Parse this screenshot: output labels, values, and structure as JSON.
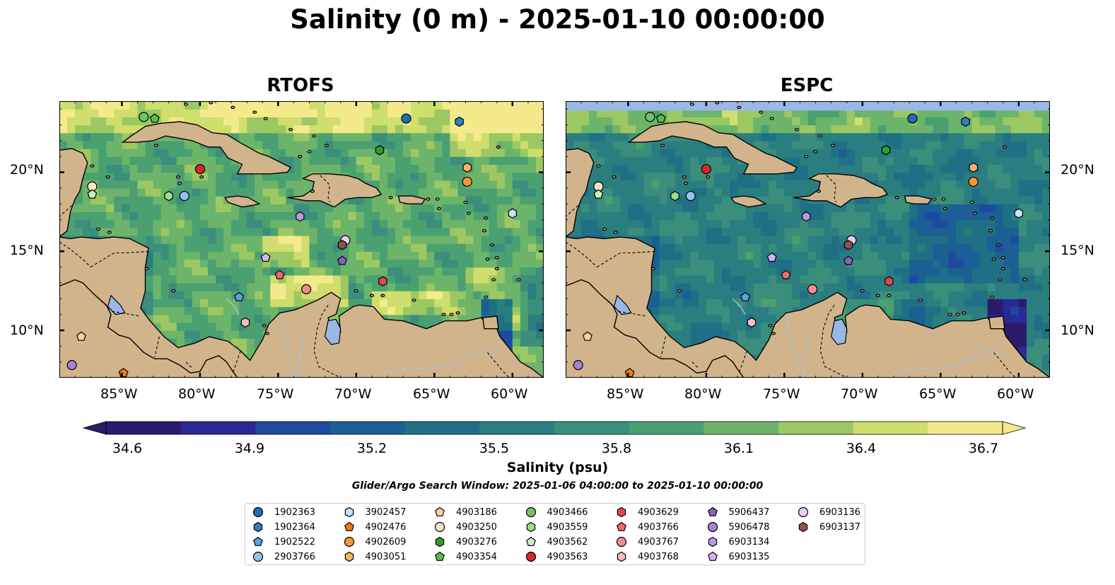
{
  "title": "Salinity (0 m) - 2025-01-10 00:00:00",
  "panels": [
    {
      "title": "RTOFS",
      "scheme": "rtofs"
    },
    {
      "title": "ESPC",
      "scheme": "espc"
    }
  ],
  "axes": {
    "lon_ticks": [
      "85°W",
      "80°W",
      "75°W",
      "70°W",
      "65°W",
      "60°W"
    ],
    "lat_ticks": [
      "20°N",
      "15°N",
      "10°N"
    ],
    "lon_range": [
      -89,
      -58
    ],
    "lat_range": [
      7,
      24.5
    ]
  },
  "colorbar": {
    "label": "Salinity (psu)",
    "ticks": [
      "34.6",
      "34.9",
      "35.2",
      "35.5",
      "35.8",
      "36.1",
      "36.4",
      "36.7"
    ],
    "range": [
      34.6,
      36.7
    ],
    "extend": "both",
    "colormap": [
      "#2b1b6a",
      "#2a2a96",
      "#1e4a9e",
      "#1b5f94",
      "#1f7085",
      "#2a7e80",
      "#3a8e7b",
      "#4aa071",
      "#6cb46a",
      "#9cc863",
      "#cfde6c",
      "#f4ea8c"
    ]
  },
  "search_window": "Glider/Argo Search Window: 2025-01-06 04:00:00 to 2025-01-10 00:00:00",
  "colors": {
    "land": "#d2b48c",
    "lake": "#9ab8e6",
    "river": "#a8c2d6",
    "nodata": "#9ab8e6"
  },
  "floats": [
    {
      "id": "1902363",
      "marker": "circle",
      "color": "#1f6eb5",
      "lon": -66.8,
      "lat": 23.4
    },
    {
      "id": "1902364",
      "marker": "hexagon",
      "color": "#2f7fc8",
      "lon": -63.4,
      "lat": 23.2
    },
    {
      "id": "1902522",
      "marker": "pentagon",
      "color": "#5aa2e0",
      "lon": -77.5,
      "lat": 12.1
    },
    {
      "id": "2903766",
      "marker": "circle",
      "color": "#93c2ee",
      "lon": -81.0,
      "lat": 18.5
    },
    {
      "id": "3902457",
      "marker": "hexagon",
      "color": "#c6e2fa",
      "lon": -60.0,
      "lat": 17.4
    },
    {
      "id": "4902476",
      "marker": "pentagon",
      "color": "#f27c0e",
      "lon": -84.9,
      "lat": 7.3
    },
    {
      "id": "4902609",
      "marker": "circle",
      "color": "#f5953a",
      "lon": -62.9,
      "lat": 19.4
    },
    {
      "id": "4903051",
      "marker": "hexagon",
      "color": "#f9b26a",
      "lon": -62.9,
      "lat": 20.3
    },
    {
      "id": "4903186",
      "marker": "pentagon",
      "color": "#fcd09c",
      "lon": -87.6,
      "lat": 9.6
    },
    {
      "id": "4903250",
      "marker": "circle",
      "color": "#fde4c9",
      "lon": -86.9,
      "lat": 19.1
    },
    {
      "id": "4903276",
      "marker": "hexagon",
      "color": "#2ca02c",
      "lon": -68.5,
      "lat": 21.4
    },
    {
      "id": "4903354",
      "marker": "pentagon",
      "color": "#58bd4e",
      "lon": -82.9,
      "lat": 23.4
    },
    {
      "id": "4903466",
      "marker": "circle",
      "color": "#6fc561",
      "lon": -83.6,
      "lat": 23.5
    },
    {
      "id": "4903559",
      "marker": "hexagon",
      "color": "#9fdc8f",
      "lon": -82.0,
      "lat": 18.5
    },
    {
      "id": "4903562",
      "marker": "pentagon",
      "color": "#c8f0bd",
      "lon": -86.9,
      "lat": 18.6
    },
    {
      "id": "4903563",
      "marker": "circle",
      "color": "#d62728",
      "lon": -80.0,
      "lat": 20.2
    },
    {
      "id": "4903629",
      "marker": "hexagon",
      "color": "#e0484c",
      "lon": -68.3,
      "lat": 13.1
    },
    {
      "id": "4903766",
      "marker": "pentagon",
      "color": "#ec6a6d",
      "lon": -74.9,
      "lat": 13.5
    },
    {
      "id": "4903767",
      "marker": "circle",
      "color": "#f18d8f",
      "lon": -73.2,
      "lat": 12.6
    },
    {
      "id": "4903768",
      "marker": "hexagon",
      "color": "#f9bcbd",
      "lon": -77.1,
      "lat": 10.5
    },
    {
      "id": "5906437",
      "marker": "pentagon",
      "color": "#8b5fbf",
      "lon": -70.9,
      "lat": 14.4
    },
    {
      "id": "5906478",
      "marker": "circle",
      "color": "#a782d0",
      "lon": -88.2,
      "lat": 7.8
    },
    {
      "id": "6903134",
      "marker": "hexagon",
      "color": "#b99ae0",
      "lon": -73.6,
      "lat": 17.2
    },
    {
      "id": "6903135",
      "marker": "pentagon",
      "color": "#d3b4f0",
      "lon": -75.8,
      "lat": 14.6
    },
    {
      "id": "6903136",
      "marker": "circle",
      "color": "#e8cdf8",
      "lon": -70.7,
      "lat": 15.7
    },
    {
      "id": "6903137",
      "marker": "hexagon",
      "color": "#8c564b",
      "lon": -70.9,
      "lat": 15.4
    }
  ]
}
